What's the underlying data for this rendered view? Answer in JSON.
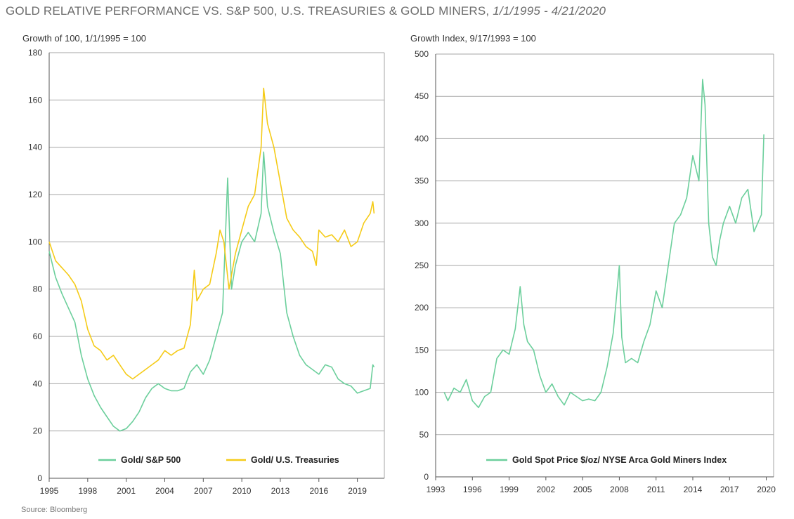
{
  "header": {
    "title_main": "GOLD RELATIVE PERFORMANCE VS. S&P 500, U.S. TREASURIES & GOLD MINERS, ",
    "title_dates": "1/1/1995 - 4/21/2020"
  },
  "source": "Source: Bloomberg",
  "colors": {
    "green": "#6ccf9c",
    "yellow": "#f5cb18",
    "grid": "#a6a6a6",
    "axis": "#555555"
  },
  "chart_data": [
    {
      "type": "line",
      "subtitle": "Growth of 100, 1/1/1995 = 100",
      "xlim": [
        1995,
        2021.1
      ],
      "ylim": [
        0,
        180
      ],
      "x_ticks": [
        "1995",
        "1998",
        "2001",
        "2004",
        "2007",
        "2010",
        "2013",
        "2016",
        "2019"
      ],
      "y_ticks": [
        "0",
        "20",
        "40",
        "60",
        "80",
        "100",
        "120",
        "140",
        "160",
        "180"
      ],
      "grid": true,
      "legend": "bottom",
      "series": [
        {
          "name": "Gold/ S&P 500",
          "color": "#6ccf9c",
          "x": [
            1995.0,
            1995.5,
            1996.0,
            1996.5,
            1997.0,
            1997.5,
            1998.0,
            1998.5,
            1999.0,
            1999.5,
            2000.0,
            2000.5,
            2001.0,
            2001.5,
            2002.0,
            2002.5,
            2003.0,
            2003.5,
            2004.0,
            2004.5,
            2005.0,
            2005.5,
            2006.0,
            2006.5,
            2007.0,
            2007.5,
            2008.0,
            2008.5,
            2008.9,
            2009.2,
            2009.5,
            2010.0,
            2010.5,
            2011.0,
            2011.5,
            2011.7,
            2012.0,
            2012.5,
            2013.0,
            2013.5,
            2014.0,
            2014.5,
            2015.0,
            2015.5,
            2016.0,
            2016.5,
            2017.0,
            2017.5,
            2018.0,
            2018.5,
            2019.0,
            2019.5,
            2020.0,
            2020.2,
            2020.3
          ],
          "values": [
            96,
            85,
            78,
            72,
            66,
            52,
            42,
            35,
            30,
            26,
            22,
            20,
            21,
            24,
            28,
            34,
            38,
            40,
            38,
            37,
            37,
            38,
            45,
            48,
            44,
            50,
            60,
            70,
            127,
            80,
            90,
            100,
            104,
            100,
            112,
            138,
            115,
            104,
            95,
            70,
            60,
            52,
            48,
            46,
            44,
            48,
            47,
            42,
            40,
            39,
            36,
            37,
            38,
            48,
            47
          ]
        },
        {
          "name": "Gold/ U.S. Treasuries",
          "color": "#f5cb18",
          "x": [
            1995.0,
            1995.5,
            1996.0,
            1996.5,
            1997.0,
            1997.5,
            1998.0,
            1998.5,
            1999.0,
            1999.5,
            2000.0,
            2000.5,
            2001.0,
            2001.5,
            2002.0,
            2002.5,
            2003.0,
            2003.5,
            2004.0,
            2004.5,
            2005.0,
            2005.5,
            2006.0,
            2006.3,
            2006.5,
            2007.0,
            2007.5,
            2008.0,
            2008.3,
            2008.6,
            2009.0,
            2009.5,
            2010.0,
            2010.5,
            2011.0,
            2011.5,
            2011.7,
            2012.0,
            2012.5,
            2013.0,
            2013.5,
            2014.0,
            2014.5,
            2015.0,
            2015.5,
            2015.8,
            2016.0,
            2016.5,
            2017.0,
            2017.5,
            2018.0,
            2018.5,
            2019.0,
            2019.5,
            2020.0,
            2020.2,
            2020.3
          ],
          "values": [
            100,
            92,
            89,
            86,
            82,
            75,
            63,
            56,
            54,
            50,
            52,
            48,
            44,
            42,
            44,
            46,
            48,
            50,
            54,
            52,
            54,
            55,
            65,
            88,
            75,
            80,
            82,
            95,
            105,
            100,
            80,
            95,
            105,
            115,
            120,
            140,
            165,
            150,
            140,
            125,
            110,
            105,
            102,
            98,
            96,
            90,
            105,
            102,
            103,
            100,
            105,
            98,
            100,
            108,
            112,
            117,
            112
          ]
        }
      ]
    },
    {
      "type": "line",
      "subtitle": "Growth Index, 9/17/1993 = 100",
      "xlim": [
        1993,
        2020.6
      ],
      "ylim": [
        0,
        500
      ],
      "x_ticks": [
        "1993",
        "1996",
        "1999",
        "2002",
        "2005",
        "2008",
        "2011",
        "2014",
        "2017",
        "2020"
      ],
      "y_ticks": [
        "0",
        "50",
        "100",
        "150",
        "200",
        "250",
        "300",
        "350",
        "400",
        "450",
        "500"
      ],
      "grid": true,
      "legend": "bottom",
      "series": [
        {
          "name": "Gold Spot Price $/oz/ NYSE Arca Gold Miners Index",
          "color": "#6ccf9c",
          "x": [
            1993.7,
            1994.0,
            1994.5,
            1995.0,
            1995.5,
            1996.0,
            1996.5,
            1997.0,
            1997.5,
            1998.0,
            1998.5,
            1999.0,
            1999.5,
            1999.9,
            2000.2,
            2000.5,
            2001.0,
            2001.5,
            2002.0,
            2002.5,
            2003.0,
            2003.5,
            2004.0,
            2004.5,
            2005.0,
            2005.5,
            2006.0,
            2006.5,
            2007.0,
            2007.5,
            2008.0,
            2008.2,
            2008.5,
            2009.0,
            2009.5,
            2010.0,
            2010.5,
            2011.0,
            2011.5,
            2012.0,
            2012.5,
            2013.0,
            2013.5,
            2014.0,
            2014.5,
            2014.8,
            2015.0,
            2015.3,
            2015.6,
            2015.9,
            2016.2,
            2016.5,
            2017.0,
            2017.5,
            2018.0,
            2018.5,
            2019.0,
            2019.3,
            2019.6,
            2019.8
          ],
          "values": [
            100,
            90,
            105,
            100,
            115,
            90,
            82,
            95,
            100,
            140,
            150,
            145,
            175,
            225,
            180,
            160,
            150,
            120,
            100,
            110,
            95,
            85,
            100,
            95,
            90,
            92,
            90,
            100,
            130,
            170,
            250,
            165,
            135,
            140,
            135,
            160,
            180,
            220,
            200,
            250,
            300,
            310,
            330,
            380,
            350,
            470,
            440,
            300,
            260,
            250,
            280,
            300,
            320,
            300,
            330,
            340,
            290,
            300,
            310,
            405
          ]
        }
      ]
    }
  ]
}
